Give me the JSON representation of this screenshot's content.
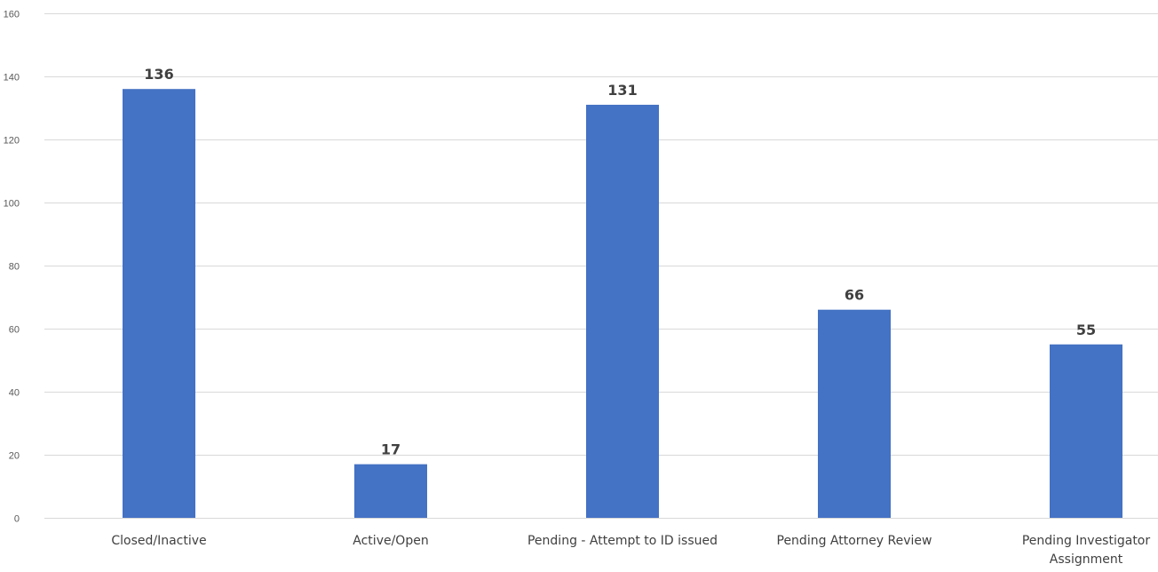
{
  "chart_data": {
    "type": "bar",
    "categories": [
      [
        "Closed/Inactive"
      ],
      [
        "Active/Open"
      ],
      [
        "Pending - Attempt to ID issued"
      ],
      [
        "Pending Attorney Review"
      ],
      [
        "Pending Investigator",
        "Assignment"
      ]
    ],
    "values": [
      136,
      17,
      131,
      66,
      55
    ],
    "ylim": [
      0,
      160
    ],
    "yticks": [
      0,
      20,
      40,
      60,
      80,
      100,
      120,
      140,
      160
    ],
    "title": "",
    "xlabel": "",
    "ylabel": "",
    "grid": true,
    "bar_color": "#4472c4",
    "data_labels": [
      "136",
      "17",
      "131",
      "66",
      "55"
    ]
  }
}
